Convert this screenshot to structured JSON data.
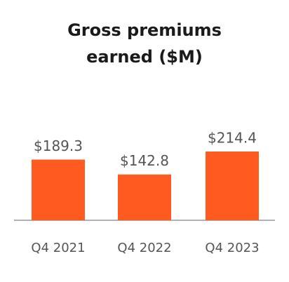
{
  "chart_data": {
    "type": "bar",
    "title": "Gross premiums earned ($M)",
    "categories": [
      "Q4 2021",
      "Q4 2022",
      "Q4 2023"
    ],
    "values": [
      189.3,
      142.8,
      214.4
    ],
    "value_labels": [
      "$189.3",
      "$142.8",
      "$214.4"
    ],
    "color": "#ff5a1f"
  }
}
